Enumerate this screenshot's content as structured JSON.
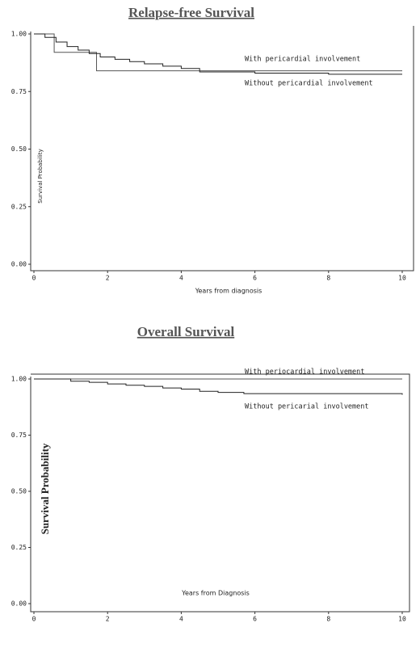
{
  "chart_data": [
    {
      "type": "km",
      "title": "Relapse-free Survival",
      "x_label": "Years from diagnosis",
      "y_label": "Survival Probability",
      "xlim": [
        0,
        10
      ],
      "ylim": [
        0,
        1
      ],
      "xticks": [
        0,
        2,
        4,
        6,
        8,
        10
      ],
      "yticks": [
        {
          "value": 0,
          "label": "0.00"
        },
        0.25,
        {
          "value": 0.5,
          "label": "0.50"
        },
        0.75,
        {
          "value": 1,
          "label": "1.00"
        }
      ],
      "series": [
        {
          "name": "With pericardial involvement",
          "color": "#555555",
          "x": [
            0,
            0.55,
            1.7,
            10
          ],
          "values": [
            1,
            0.92,
            0.84,
            0.84
          ]
        },
        {
          "name": "Without pericardial involvement",
          "color": "#222222",
          "x": [
            0,
            0.3,
            0.6,
            0.9,
            1.2,
            1.5,
            1.8,
            2.2,
            2.6,
            3.0,
            3.5,
            4.0,
            4.5,
            6,
            8,
            10
          ],
          "values": [
            1,
            0.985,
            0.965,
            0.945,
            0.93,
            0.915,
            0.9,
            0.89,
            0.88,
            0.87,
            0.86,
            0.85,
            0.835,
            0.83,
            0.825,
            0.825
          ]
        }
      ]
    },
    {
      "type": "km",
      "title": "Overall Survival",
      "x_label": "Years from Diagnosis",
      "y_label": "Survival Probability",
      "xlim": [
        0,
        10
      ],
      "ylim": [
        0,
        1
      ],
      "xticks": [
        0,
        2,
        4,
        6,
        8,
        10
      ],
      "yticks": [
        {
          "value": 0,
          "label": "0.00"
        },
        0.25,
        {
          "value": 0.5,
          "label": "0.50"
        },
        0.75,
        {
          "value": 1,
          "label": "1.00"
        }
      ],
      "series": [
        {
          "name": "With periocardial involvement",
          "color": "#555555",
          "x": [
            0,
            10
          ],
          "values": [
            1,
            1
          ]
        },
        {
          "name": "Without pericarial involvement",
          "color": "#222222",
          "x": [
            0,
            0.5,
            1,
            1.5,
            2,
            2.5,
            3,
            3.5,
            4,
            4.5,
            5,
            5.7,
            10
          ],
          "values": [
            1,
            1,
            0.99,
            0.985,
            0.978,
            0.972,
            0.967,
            0.96,
            0.955,
            0.945,
            0.94,
            0.935,
            0.93
          ]
        }
      ]
    }
  ]
}
